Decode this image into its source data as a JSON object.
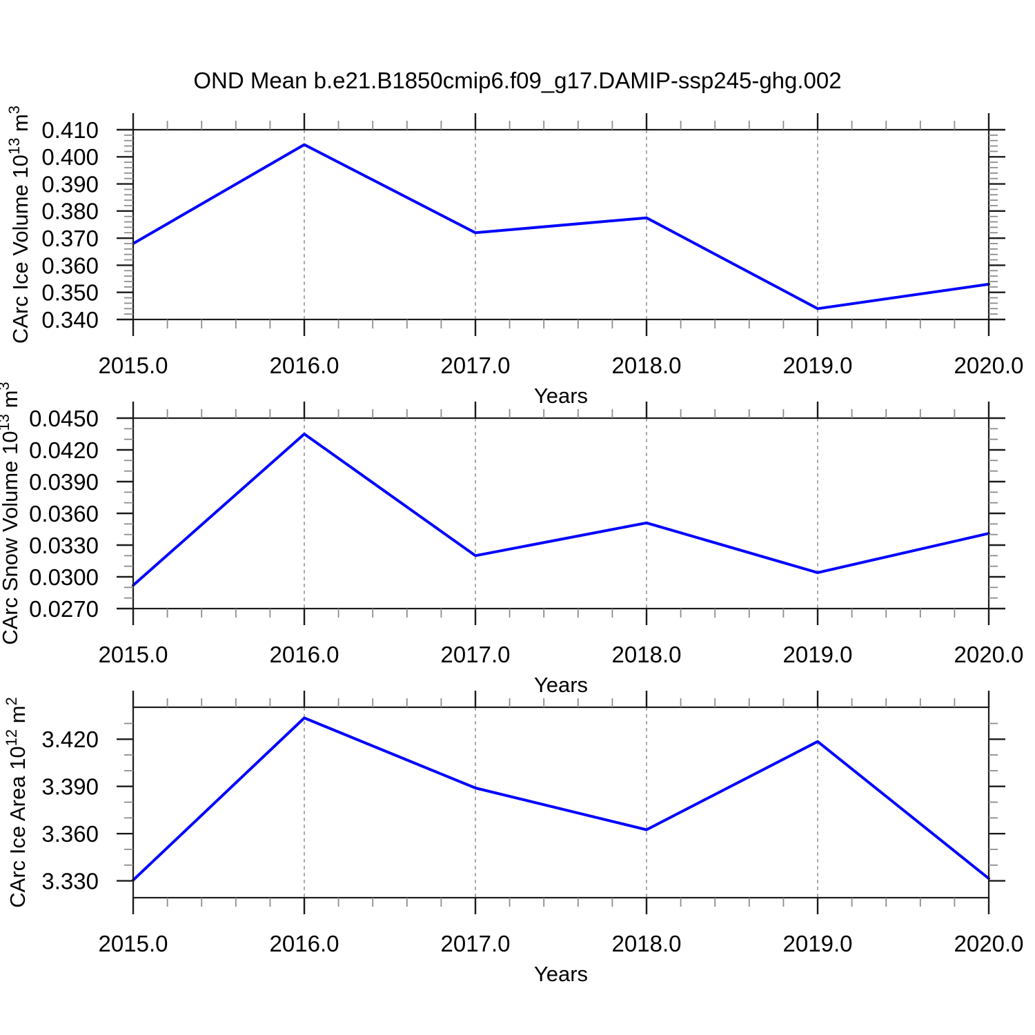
{
  "title": "OND Mean b.e21.B1850cmip6.f09_g17.DAMIP-ssp245-ghg.002",
  "colors": {
    "background": "#ffffff",
    "text": "#000000",
    "axis": "#1a1a1a",
    "minor_tick": "#8c8c8c",
    "gridline": "#868686",
    "line": "#0000ff"
  },
  "x_axis": {
    "label": "Years",
    "min": 2015.0,
    "max": 2020.0,
    "major_tick_step": 1.0,
    "minor_tick_step": 0.2,
    "tick_labels": [
      "2015.0",
      "2016.0",
      "2017.0",
      "2018.0",
      "2019.0",
      "2020.0"
    ],
    "gridline_years": [
      2016.0,
      2017.0,
      2018.0,
      2019.0
    ],
    "gridline_style": "dashed"
  },
  "chart_data": [
    {
      "id": "ice-volume",
      "type": "line",
      "ylabel": "CArc Ice Volume 10^13 m^3",
      "ylabel_parts": [
        {
          "t": "CArc Ice Volume 10"
        },
        {
          "t": "13",
          "sup": true
        },
        {
          "t": " m"
        },
        {
          "t": "3",
          "sup": true
        }
      ],
      "xlabel": "Years",
      "x": [
        2015.0,
        2016.0,
        2017.0,
        2018.0,
        2019.0,
        2020.0
      ],
      "y": [
        0.368,
        0.4045,
        0.372,
        0.3775,
        0.344,
        0.353
      ],
      "ylim": [
        0.34,
        0.41
      ],
      "ytick_values": [
        0.34,
        0.35,
        0.36,
        0.37,
        0.38,
        0.39,
        0.4,
        0.41
      ],
      "ytick_labels": [
        "0.340",
        "0.350",
        "0.360",
        "0.370",
        "0.380",
        "0.390",
        "0.400",
        "0.410"
      ],
      "yminor_step": 0.002
    },
    {
      "id": "snow-volume",
      "type": "line",
      "ylabel": "CArc Snow Volume 10^13 m^3",
      "ylabel_parts": [
        {
          "t": "CArc Snow Volume 10"
        },
        {
          "t": "13",
          "sup": true
        },
        {
          "t": " m"
        },
        {
          "t": "3",
          "sup": true
        }
      ],
      "xlabel": "Years",
      "x": [
        2015.0,
        2016.0,
        2017.0,
        2018.0,
        2019.0,
        2020.0
      ],
      "y": [
        0.0292,
        0.0435,
        0.032,
        0.0351,
        0.0304,
        0.0341
      ],
      "ylim": [
        0.027,
        0.045
      ],
      "ytick_values": [
        0.027,
        0.03,
        0.033,
        0.036,
        0.039,
        0.042,
        0.045
      ],
      "ytick_labels": [
        "0.0270",
        "0.0300",
        "0.0330",
        "0.0360",
        "0.0390",
        "0.0420",
        "0.0450"
      ],
      "yminor_step": 0.001
    },
    {
      "id": "ice-area",
      "type": "line",
      "ylabel": "CArc Ice Area 10^12 m^2",
      "ylabel_parts": [
        {
          "t": "CArc Ice Area 10"
        },
        {
          "t": "12",
          "sup": true
        },
        {
          "t": " m"
        },
        {
          "t": "2",
          "sup": true
        }
      ],
      "xlabel": "Years",
      "x": [
        2015.0,
        2016.0,
        2017.0,
        2018.0,
        2019.0,
        2020.0
      ],
      "y": [
        3.3305,
        3.4335,
        3.389,
        3.3625,
        3.4185,
        3.3315
      ],
      "ylim": [
        3.3193,
        3.4403
      ],
      "ytick_values": [
        3.33,
        3.36,
        3.39,
        3.42
      ],
      "ytick_labels": [
        "3.330",
        "3.360",
        "3.390",
        "3.420"
      ],
      "yminor_step": 0.01
    }
  ]
}
